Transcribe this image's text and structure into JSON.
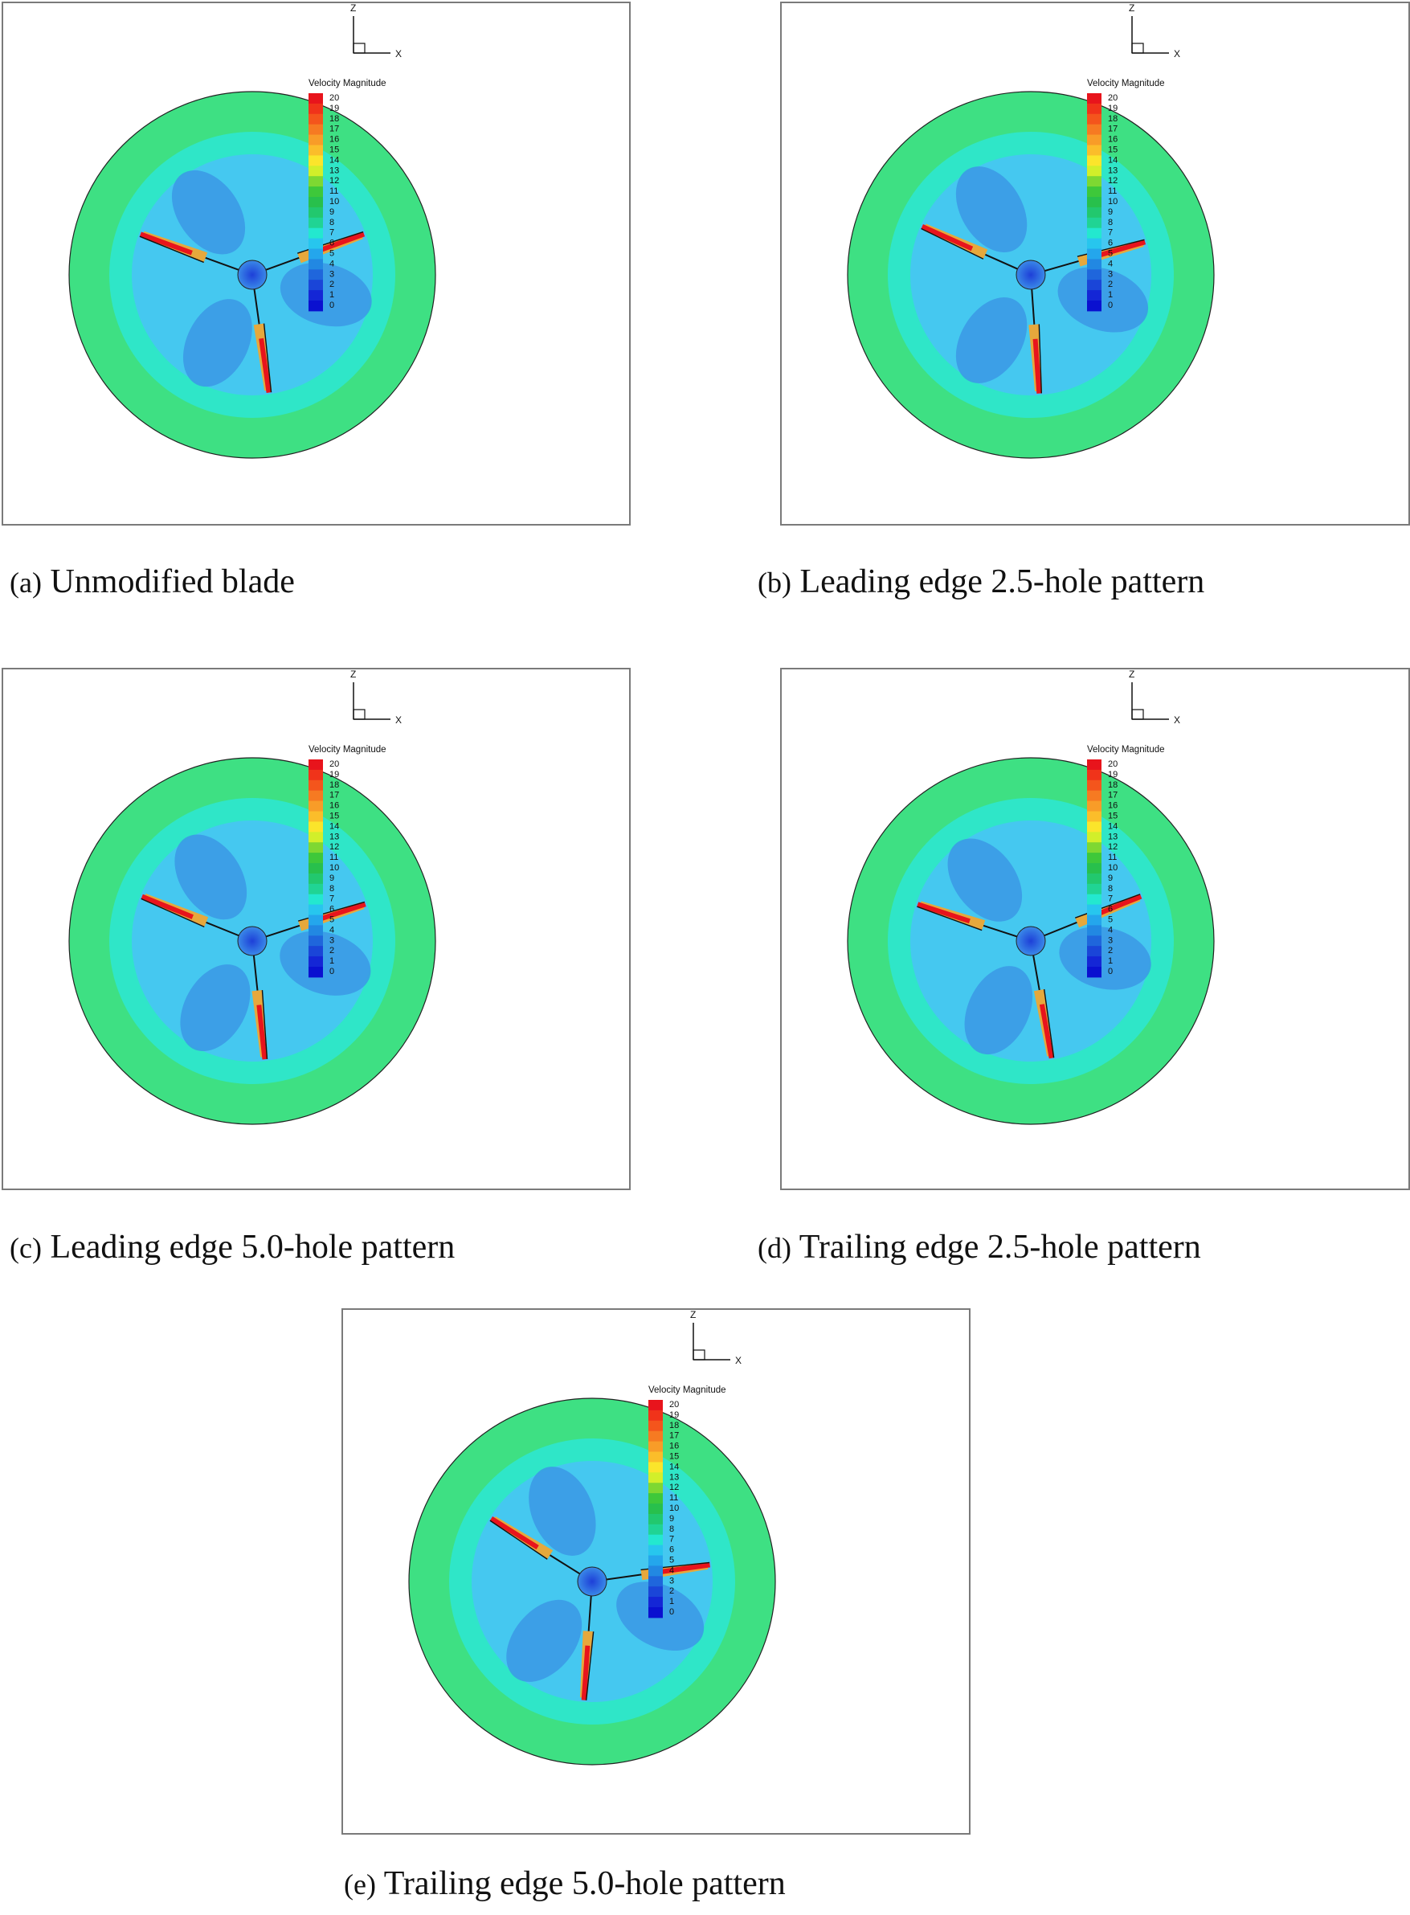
{
  "panels": [
    {
      "id": "a",
      "letter": "(a)",
      "caption": "Unmodified blade",
      "rotation": 0
    },
    {
      "id": "b",
      "letter": "(b)",
      "caption": "Leading edge 2.5-hole pattern",
      "rotation": 4
    },
    {
      "id": "c",
      "letter": "(c)",
      "caption": "Leading edge 5.0-hole pattern",
      "rotation": 2
    },
    {
      "id": "d",
      "letter": "(d)",
      "caption": "Trailing edge 2.5-hole pattern",
      "rotation": -2
    },
    {
      "id": "e",
      "letter": "(e)",
      "caption": "Trailing edge 5.0-hole pattern",
      "rotation": 12
    }
  ],
  "axes": {
    "vertical": "Z",
    "horizontal": "X"
  },
  "legend": {
    "title": "Velocity Magnitude",
    "levels": [
      "20",
      "19",
      "18",
      "17",
      "16",
      "15",
      "14",
      "13",
      "12",
      "11",
      "10",
      "9",
      "8",
      "7",
      "6",
      "5",
      "4",
      "3",
      "2",
      "1",
      "0"
    ],
    "colors": [
      "#e8141c",
      "#f0331a",
      "#f4551c",
      "#f67a22",
      "#f89c28",
      "#fbbd2a",
      "#fbe52b",
      "#d2ef2a",
      "#7ed832",
      "#3ec83a",
      "#28c04c",
      "#22c86e",
      "#20d494",
      "#23e8cf",
      "#27c6ee",
      "#24a6ec",
      "#2288e2",
      "#1f66dc",
      "#1a45d8",
      "#1426d6",
      "#0a10d0"
    ]
  },
  "field_colors": {
    "outer": "#3ee083",
    "mid": "#2fe6c8",
    "inner": "#45c8f0",
    "low": "#3b9ae6",
    "hub": "#2b63dc",
    "tip": "#e8141c"
  }
}
